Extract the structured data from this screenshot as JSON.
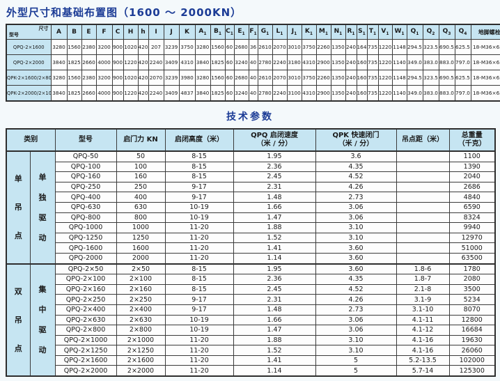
{
  "titles": {
    "dimension": "外型尺寸和基础布置图（1600 ～ 2000KN）",
    "tech": "技术参数"
  },
  "colors": {
    "header_bg": "#c6e5f2",
    "title_blue": "#1c3c96",
    "border": "#3a3a3a"
  },
  "dimension_table": {
    "corner_top": "尺寸",
    "corner_bottom": "型号",
    "columns": [
      "A",
      "B",
      "E",
      "F",
      "C",
      "H",
      "h",
      "I",
      "J",
      "K",
      "A1",
      "B1",
      "C1",
      "E1",
      "F1",
      "G1",
      "L1",
      "J1",
      "K1",
      "M1",
      "N1",
      "R1",
      "S1",
      "T1",
      "V1",
      "W1",
      "Q1",
      "Q2",
      "Q3",
      "Q4",
      "地脚螺栓"
    ],
    "rows": [
      {
        "model": "QPQ-2×1600",
        "values": [
          "3280",
          "1560",
          "2380",
          "3200",
          "900",
          "1020",
          "420",
          "207",
          "3239",
          "3750",
          "3280",
          "1560",
          "60",
          "2680",
          "36",
          "2610",
          "2070",
          "3010",
          "3750",
          "2260",
          "1350",
          "240",
          "164",
          "735",
          "1220",
          "1148",
          "294.5",
          "323.5",
          "690.5",
          "625.5",
          "18-M36×630"
        ]
      },
      {
        "model": "QPQ-2×2000",
        "values": [
          "3840",
          "1825",
          "2660",
          "4000",
          "900",
          "1220",
          "420",
          "2240",
          "3409",
          "4310",
          "3840",
          "1825",
          "60",
          "3240",
          "40",
          "2780",
          "2240",
          "3180",
          "4310",
          "2900",
          "1350",
          "240",
          "160",
          "735",
          "1220",
          "1140",
          "349.0",
          "383.0",
          "883.0",
          "797.0",
          "18-M36×630"
        ]
      },
      {
        "model": "QPK-2×1600/2×800",
        "values": [
          "3280",
          "1560",
          "2380",
          "3200",
          "900",
          "1020",
          "420",
          "2070",
          "3239",
          "3980",
          "3280",
          "1560",
          "60",
          "2680",
          "40",
          "2610",
          "2070",
          "3010",
          "3750",
          "2260",
          "1350",
          "240",
          "160",
          "735",
          "1220",
          "1148",
          "294.5",
          "323.5",
          "690.5",
          "625.5",
          "18-M36×630"
        ]
      },
      {
        "model": "QPK-2×2000/2×1000",
        "values": [
          "3840",
          "1825",
          "2660",
          "4000",
          "900",
          "1220",
          "420",
          "2240",
          "3409",
          "4837",
          "3840",
          "1825",
          "60",
          "3240",
          "40",
          "2780",
          "2240",
          "3100",
          "4310",
          "2900",
          "1350",
          "240",
          "160",
          "735",
          "1220",
          "1140",
          "349.0",
          "383.0",
          "883.0",
          "797.0",
          "18-M36×630"
        ]
      }
    ]
  },
  "tech_table": {
    "category_header": "类别",
    "headers": [
      "型号",
      "启门力 KN",
      "启闭高度（米）",
      "QPQ 启闭速度\n（米 / 分）",
      "QPK 快速闭门\n（米 / 分）",
      "吊点距（米）",
      "总重量\n（千克）"
    ],
    "groups": [
      {
        "category": "单吊点",
        "drive": "单独驱动",
        "rows": [
          [
            "QPQ-50",
            "50",
            "8-15",
            "1.95",
            "3.6",
            "",
            "1100"
          ],
          [
            "QPQ-100",
            "100",
            "8-15",
            "2.36",
            "4.35",
            "",
            "1390"
          ],
          [
            "QPQ-160",
            "160",
            "8-15",
            "2.45",
            "4.52",
            "",
            "2040"
          ],
          [
            "QPQ-250",
            "250",
            "9-17",
            "2.31",
            "4.26",
            "",
            "2686"
          ],
          [
            "QPQ-400",
            "400",
            "9-17",
            "1.48",
            "2.73",
            "",
            "4840"
          ],
          [
            "QPQ-630",
            "630",
            "10-19",
            "1.66",
            "3.06",
            "",
            "6590"
          ],
          [
            "QPQ-800",
            "800",
            "10-19",
            "1.47",
            "3.06",
            "",
            "8324"
          ],
          [
            "QPQ-1000",
            "1000",
            "11-20",
            "1.88",
            "3.10",
            "",
            "9940"
          ],
          [
            "QPQ-1250",
            "1250",
            "11-20",
            "1.52",
            "3.10",
            "",
            "12970"
          ],
          [
            "QPQ-1600",
            "1600",
            "11-20",
            "1.41",
            "3.60",
            "",
            "51000"
          ],
          [
            "QPQ-2000",
            "2000",
            "11-20",
            "1.14",
            "3.60",
            "",
            "63500"
          ]
        ]
      },
      {
        "category": "双吊点",
        "drive": "集中驱动",
        "rows": [
          [
            "QPQ-2×50",
            "2×50",
            "8-15",
            "1.95",
            "3.60",
            "1.8-6",
            "1780"
          ],
          [
            "QPQ-2×100",
            "2×100",
            "8-15",
            "2.36",
            "4.35",
            "1.8-7",
            "2080"
          ],
          [
            "QPQ-2×160",
            "2×160",
            "8-15",
            "2.45",
            "4.52",
            "2.1-8",
            "3500"
          ],
          [
            "QPQ-2×250",
            "2×250",
            "9-17",
            "2.31",
            "4.26",
            "3.1-9",
            "5234"
          ],
          [
            "QPQ-2×400",
            "2×400",
            "9-17",
            "1.48",
            "2.73",
            "3.1-10",
            "8070"
          ],
          [
            "QPQ-2×630",
            "2×630",
            "10-19",
            "1.66",
            "3.06",
            "4.1-11",
            "12800"
          ],
          [
            "QPQ-2×800",
            "2×800",
            "10-19",
            "1.47",
            "3.06",
            "4.1-12",
            "16684"
          ],
          [
            "QPQ-2×1000",
            "2×1000",
            "11-20",
            "1.88",
            "3.10",
            "4.1-16",
            "19630"
          ],
          [
            "QPQ-2×1250",
            "2×1250",
            "11-20",
            "1.52",
            "3.10",
            "4.1-16",
            "26060"
          ],
          [
            "QPQ-2×1600",
            "2×1600",
            "11-20",
            "1.41",
            "5",
            "5.2-13.5",
            "102000"
          ],
          [
            "QPQ-2×2000",
            "2×2000",
            "11-20",
            "1.14",
            "5",
            "5.7-14",
            "125300"
          ]
        ]
      }
    ]
  }
}
